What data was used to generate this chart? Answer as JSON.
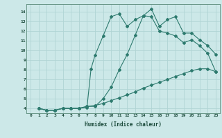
{
  "xlabel": "Humidex (Indice chaleur)",
  "bg_color": "#cce8e8",
  "line_color": "#2d7a6e",
  "grid_color": "#b0d4d4",
  "xlim": [
    -0.5,
    23.5
  ],
  "ylim": [
    3.5,
    14.8
  ],
  "xticks": [
    0,
    1,
    2,
    3,
    4,
    5,
    6,
    7,
    8,
    9,
    10,
    11,
    12,
    13,
    14,
    15,
    16,
    17,
    18,
    19,
    20,
    21,
    22,
    23
  ],
  "yticks": [
    4,
    5,
    6,
    7,
    8,
    9,
    10,
    11,
    12,
    13,
    14
  ],
  "line1_x": [
    1,
    2,
    3,
    4,
    5,
    6,
    7,
    7.5,
    8,
    9,
    10,
    11,
    12,
    13,
    14,
    15,
    16,
    17,
    18,
    19,
    20,
    21,
    22,
    23
  ],
  "line1_y": [
    4.0,
    3.8,
    3.8,
    4.0,
    4.0,
    4.0,
    4.1,
    8.1,
    9.5,
    11.5,
    13.5,
    13.8,
    12.5,
    13.2,
    13.6,
    13.5,
    12.0,
    11.8,
    11.5,
    10.8,
    11.1,
    10.5,
    9.7,
    7.8
  ],
  "line2_x": [
    1,
    2,
    3,
    4,
    5,
    6,
    7,
    8,
    9,
    10,
    11,
    12,
    13,
    14,
    15,
    16,
    17,
    18,
    19,
    20,
    21,
    22,
    23
  ],
  "line2_y": [
    4.0,
    3.8,
    3.8,
    4.0,
    4.0,
    4.0,
    4.2,
    4.2,
    5.0,
    6.2,
    8.0,
    9.6,
    11.6,
    13.6,
    14.3,
    12.5,
    13.2,
    13.5,
    11.8,
    11.8,
    11.1,
    10.5,
    9.6
  ],
  "line3_x": [
    1,
    2,
    3,
    4,
    5,
    6,
    7,
    8,
    9,
    10,
    11,
    12,
    13,
    14,
    15,
    16,
    17,
    18,
    19,
    20,
    21,
    22,
    23
  ],
  "line3_y": [
    4.0,
    3.8,
    3.8,
    4.0,
    4.0,
    4.0,
    4.2,
    4.3,
    4.5,
    4.8,
    5.1,
    5.4,
    5.7,
    6.1,
    6.4,
    6.7,
    7.0,
    7.3,
    7.6,
    7.9,
    8.1,
    8.1,
    7.8
  ]
}
